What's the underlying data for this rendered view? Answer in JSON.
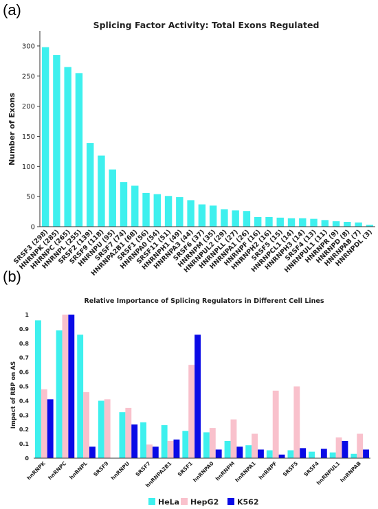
{
  "chart_data": [
    {
      "panel": "(a)",
      "type": "bar",
      "title": "Splicing Factor Activity: Total Exons Regulated",
      "xlabel": "",
      "ylabel": "Number of Exons",
      "ylim": [
        0,
        325
      ],
      "yticks": [
        0,
        50,
        100,
        150,
        200,
        250,
        300
      ],
      "grid": false,
      "categories": [
        "SRSF3 (298)",
        "HNRNPK (285)",
        "HNRNPC (265)",
        "HNRNPL (255)",
        "SRSF2 (139)",
        "SRSF9 (118)",
        "HNRNPU (95)",
        "SRSF7 (74)",
        "HNRNPA2B1 (68)",
        "SRSF1 (56)",
        "HNRNPA0 (54)",
        "SRSF11 (51)",
        "HNRNPH1 (49)",
        "HNRNPA3 (44)",
        "SRSF6 (37)",
        "HNRNPM (35)",
        "HNRNPUL2 (29)",
        "HNRNPLL (27)",
        "HNRNPA1 (26)",
        "HNRNPF (16)",
        "HNRNPH2 (16)",
        "SRSF5 (15)",
        "HNRNPCL1 (14)",
        "HNRNPH3 (14)",
        "SRSF4 (13)",
        "HNRNPUL1 (11)",
        "HNRNPR (9)",
        "HNRNPD (8)",
        "HNRNPAB (7)",
        "HNRNPDL (3)"
      ],
      "values": [
        298,
        285,
        265,
        255,
        139,
        118,
        95,
        74,
        68,
        56,
        54,
        51,
        49,
        44,
        37,
        35,
        29,
        27,
        26,
        16,
        16,
        15,
        14,
        14,
        13,
        11,
        9,
        8,
        7,
        3
      ],
      "color": "#3ef0ee"
    },
    {
      "panel": "(b)",
      "type": "bar",
      "title": "Relative Importance of Splicing Regulators in Different Cell Lines",
      "xlabel": "",
      "ylabel": "Impact of RBP on AS",
      "ylim": [
        0,
        1
      ],
      "yticks": [
        "0",
        "0.1",
        "0.2",
        "0.3",
        "0.4",
        "0.5",
        "0.6",
        "0.7",
        "0.8",
        "0.9",
        "1"
      ],
      "grid": false,
      "legend_position": "bottom-center",
      "categories": [
        "hnRNPK",
        "hnRNPC",
        "hnRNPL",
        "SRSF9",
        "hnRNPU",
        "SRSF7",
        "hnRNPA2B1",
        "SRSF1",
        "hnRNPA0",
        "hnRNPM",
        "hnRNPA1",
        "hnRNPF",
        "SRSF5",
        "SRSF4",
        "hnRNPUL1",
        "hnRNPAB"
      ],
      "series": [
        {
          "name": "HeLa",
          "color": "#3ef0ee",
          "values": [
            0.96,
            0.89,
            0.86,
            0.4,
            0.32,
            0.25,
            0.23,
            0.19,
            0.18,
            0.12,
            0.09,
            0.055,
            0.055,
            0.045,
            0.04,
            0.03
          ]
        },
        {
          "name": "HepG2",
          "color": "#f9c1cc",
          "values": [
            0.48,
            1.0,
            0.46,
            0.41,
            0.35,
            0.095,
            0.12,
            0.65,
            0.21,
            0.27,
            0.17,
            0.47,
            0.5,
            0.0,
            0.145,
            0.17
          ]
        },
        {
          "name": "K562",
          "color": "#0a0ae6",
          "values": [
            0.41,
            1.0,
            0.08,
            0.0,
            0.235,
            0.08,
            0.13,
            0.86,
            0.06,
            0.08,
            0.06,
            0.025,
            0.07,
            0.065,
            0.12,
            0.06
          ]
        }
      ]
    }
  ]
}
